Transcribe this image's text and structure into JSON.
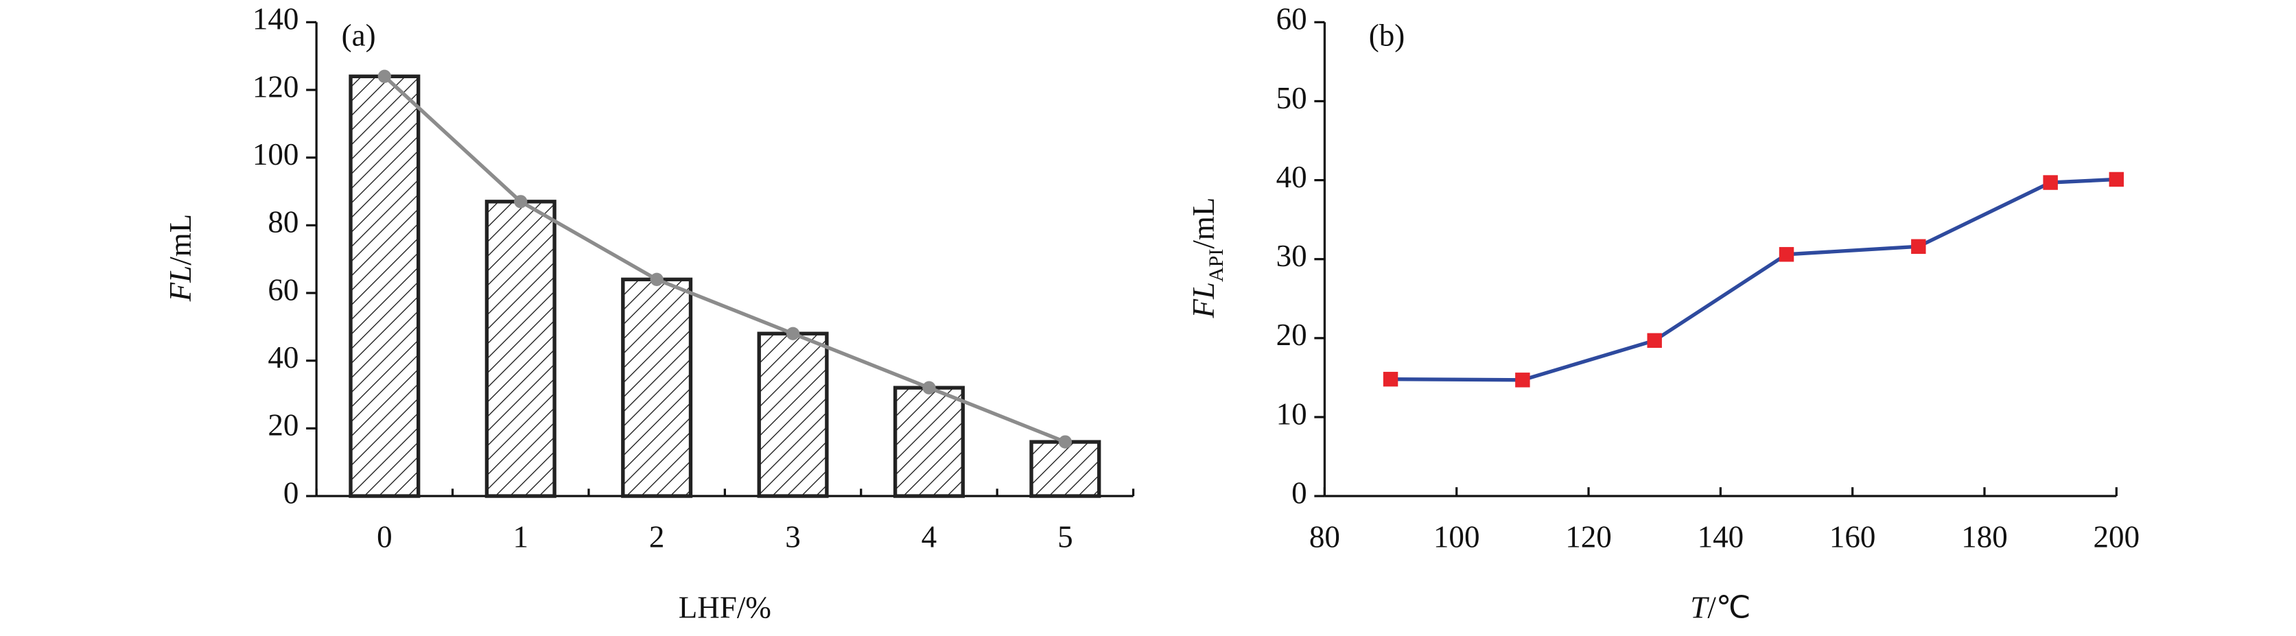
{
  "chart_data": [
    {
      "type": "bar",
      "title": "(a)",
      "categories": [
        "0",
        "1",
        "2",
        "3",
        "4",
        "5"
      ],
      "values": [
        124,
        87,
        64,
        48,
        32,
        16
      ],
      "color": "#222222",
      "line_color": "#8c8c8c",
      "ylim": [
        0,
        140
      ],
      "yticks": [
        0,
        20,
        40,
        60,
        80,
        100,
        120,
        140
      ],
      "x_label": [
        "LHF/%"
      ],
      "y_label": [
        "FL",
        "/mL"
      ]
    },
    {
      "type": "line",
      "title": "(b)",
      "x": [
        90,
        110,
        130,
        150,
        170,
        190,
        200
      ],
      "values": [
        14.8,
        14.7,
        19.7,
        30.6,
        31.6,
        39.7,
        40.1
      ],
      "color": "#2e4a9e",
      "marker_color": "#e8242b",
      "xlim": [
        80,
        200
      ],
      "xticks": [
        80,
        100,
        120,
        140,
        160,
        180,
        200
      ],
      "ylim": [
        0,
        60
      ],
      "yticks": [
        0,
        10,
        20,
        30,
        40,
        50,
        60
      ],
      "x_label": [
        "T",
        "/℃"
      ],
      "y_label": [
        "FL",
        "API",
        "/mL"
      ]
    }
  ]
}
